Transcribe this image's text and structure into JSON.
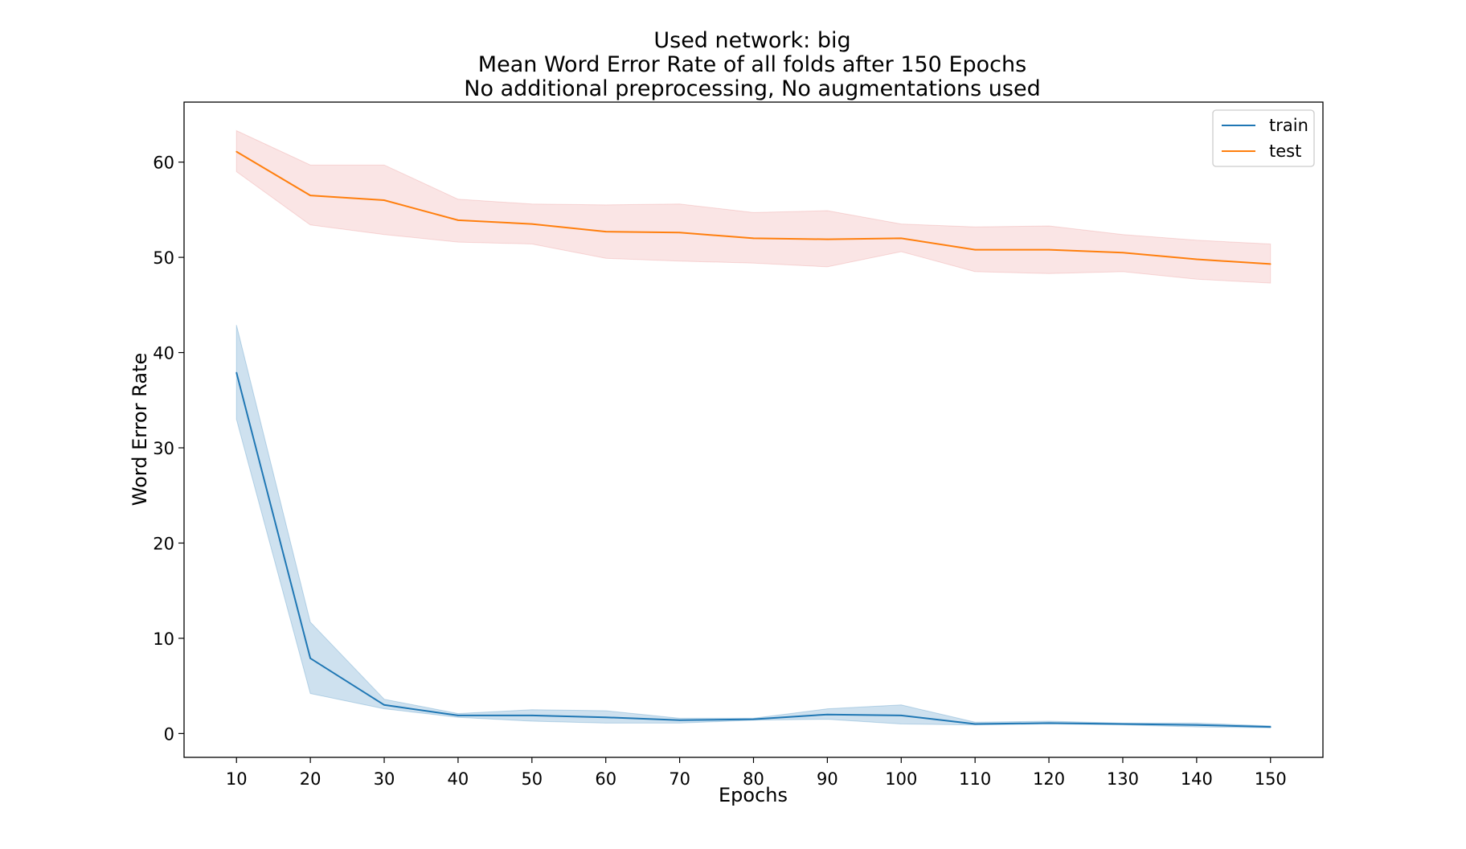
{
  "chart_data": {
    "type": "line",
    "title": [
      "Used network: big",
      "Mean Word Error Rate of all folds after 150 Epochs",
      "No additional preprocessing, No augmentations used"
    ],
    "xlabel": "Epochs",
    "ylabel": "Word Error Rate",
    "x": [
      10,
      20,
      30,
      40,
      50,
      60,
      70,
      80,
      90,
      100,
      110,
      120,
      130,
      140,
      150
    ],
    "xticks": [
      "10",
      "20",
      "30",
      "40",
      "50",
      "60",
      "70",
      "80",
      "90",
      "100",
      "110",
      "120",
      "130",
      "140",
      "150"
    ],
    "yticks": [
      "0",
      "10",
      "20",
      "30",
      "40",
      "50",
      "60"
    ],
    "xlim": [
      2.9,
      157.1
    ],
    "ylim": [
      -2.5,
      66.3
    ],
    "grid": false,
    "legend_position": "top-right",
    "series": [
      {
        "name": "train",
        "color": "#1f77b4",
        "band_color": "#1f77b4",
        "values": [
          37.9,
          7.9,
          3.0,
          1.9,
          1.9,
          1.7,
          1.4,
          1.5,
          2.0,
          1.9,
          1.0,
          1.1,
          1.0,
          0.9,
          0.7
        ],
        "lower": [
          33.0,
          4.2,
          2.6,
          1.7,
          1.3,
          1.1,
          1.1,
          1.4,
          1.5,
          1.0,
          0.9,
          1.0,
          0.9,
          0.7,
          0.6
        ],
        "upper": [
          42.9,
          11.7,
          3.6,
          2.1,
          2.5,
          2.4,
          1.6,
          1.6,
          2.6,
          3.0,
          1.2,
          1.3,
          1.1,
          1.1,
          0.8
        ]
      },
      {
        "name": "test",
        "color": "#ff7f0e",
        "band_color": "#d62728",
        "values": [
          61.1,
          56.5,
          56.0,
          53.9,
          53.5,
          52.7,
          52.6,
          52.0,
          51.9,
          52.0,
          50.8,
          50.8,
          50.5,
          49.8,
          49.3
        ],
        "lower": [
          59.0,
          53.4,
          52.4,
          51.6,
          51.4,
          49.9,
          49.6,
          49.4,
          49.0,
          50.6,
          48.5,
          48.3,
          48.5,
          47.7,
          47.3
        ],
        "upper": [
          63.3,
          59.7,
          59.7,
          56.1,
          55.6,
          55.5,
          55.6,
          54.7,
          54.9,
          53.5,
          53.2,
          53.3,
          52.4,
          51.8,
          51.4
        ]
      }
    ]
  }
}
